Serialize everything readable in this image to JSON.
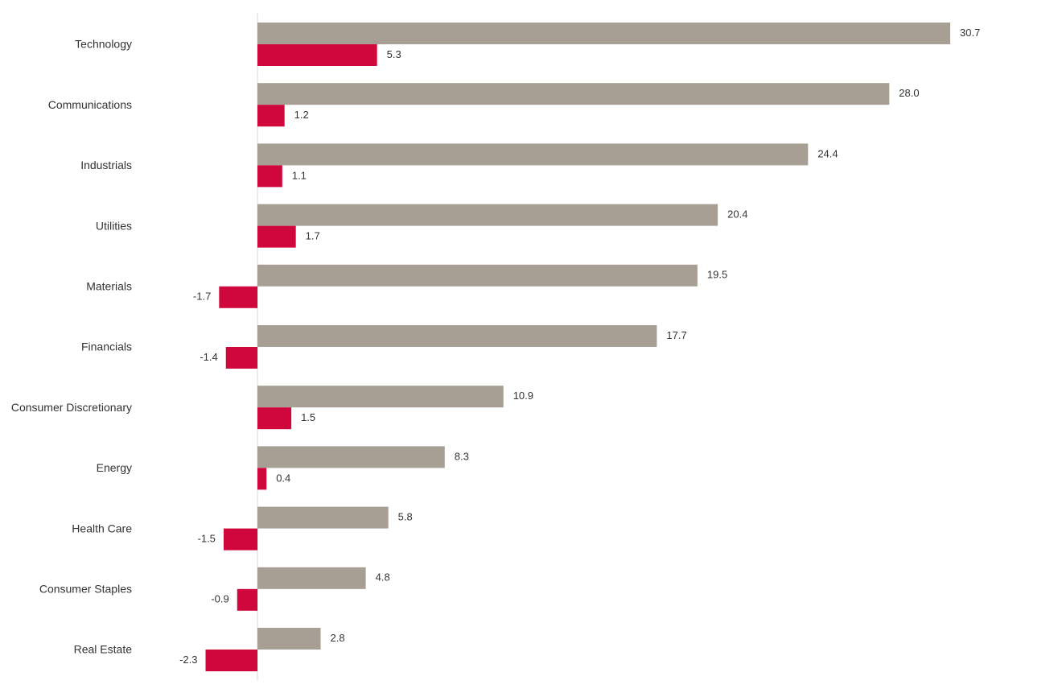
{
  "chart_data": {
    "type": "bar",
    "orientation": "horizontal",
    "categories": [
      "Technology",
      "Communications",
      "Industrials",
      "Utilities",
      "Materials",
      "Financials",
      "Consumer Discretionary",
      "Energy",
      "Health Care",
      "Consumer Staples",
      "Real Estate"
    ],
    "series": [
      {
        "values": [
          30.7,
          28.0,
          24.4,
          20.4,
          19.5,
          17.7,
          10.9,
          8.3,
          5.8,
          4.8,
          2.8
        ],
        "labels": [
          "30.7",
          "28.0",
          "24.4",
          "20.4",
          "19.5",
          "17.7",
          "10.9",
          "8.3",
          "5.8",
          "4.8",
          "2.8"
        ],
        "color": "#a89f94"
      },
      {
        "values": [
          5.3,
          1.2,
          1.1,
          1.7,
          -1.7,
          -1.4,
          1.5,
          0.4,
          -1.5,
          -0.9,
          -2.3
        ],
        "labels": [
          "5.3",
          "1.2",
          "1.1",
          "1.7",
          "-1.7",
          "-1.4",
          "1.5",
          "0.4",
          "-1.5",
          "-0.9",
          "-2.3"
        ],
        "color": "#d0073c"
      }
    ],
    "title": "",
    "xlabel": "",
    "ylabel": "",
    "xlim": [
      -2.3,
      30.7
    ],
    "grid": false,
    "legend": "none",
    "axis_line_color": "#d9d9d9"
  }
}
